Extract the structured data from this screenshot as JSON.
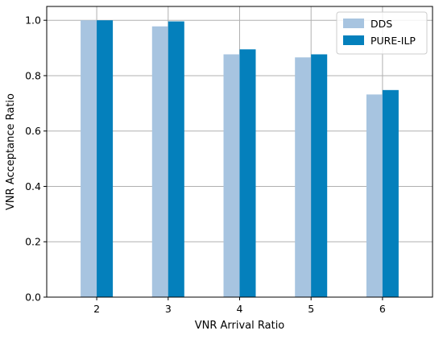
{
  "chart_data": {
    "type": "bar",
    "x_categories": [
      "2",
      "3",
      "4",
      "5",
      "6"
    ],
    "series": [
      {
        "name": "DDS",
        "values": [
          1.0,
          0.978,
          0.877,
          0.866,
          0.732
        ],
        "color": "#a7c4e0"
      },
      {
        "name": "PURE-ILP",
        "values": [
          1.0,
          0.996,
          0.895,
          0.877,
          0.748
        ],
        "color": "#0480bc"
      }
    ],
    "xlabel": "VNR Arrival Ratio",
    "ylabel": "VNR Acceptance Ratio",
    "ylim": [
      0,
      1.05
    ],
    "y_ticks": [
      "0.0",
      "0.2",
      "0.4",
      "0.6",
      "0.8",
      "1.0"
    ],
    "grid": true,
    "legend_position": "top-right"
  }
}
